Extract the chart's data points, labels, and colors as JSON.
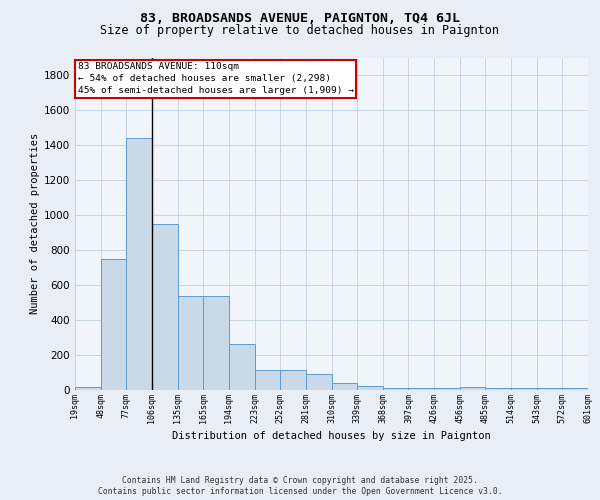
{
  "title": "83, BROADSANDS AVENUE, PAIGNTON, TQ4 6JL",
  "subtitle": "Size of property relative to detached houses in Paignton",
  "xlabel": "Distribution of detached houses by size in Paignton",
  "ylabel": "Number of detached properties",
  "bar_values": [
    20,
    750,
    1440,
    950,
    535,
    535,
    265,
    115,
    115,
    90,
    40,
    25,
    10,
    10,
    10,
    20,
    10,
    10,
    10,
    10
  ],
  "bin_labels": [
    "19sqm",
    "48sqm",
    "77sqm",
    "106sqm",
    "135sqm",
    "165sqm",
    "194sqm",
    "223sqm",
    "252sqm",
    "281sqm",
    "310sqm",
    "339sqm",
    "368sqm",
    "397sqm",
    "426sqm",
    "456sqm",
    "485sqm",
    "514sqm",
    "543sqm",
    "572sqm",
    "601sqm"
  ],
  "bar_color": "#c9d9e8",
  "bar_edge_color": "#5b9bd5",
  "vline_x_idx": 3,
  "vline_color": "#000000",
  "annotation_text": "83 BROADSANDS AVENUE: 110sqm\n← 54% of detached houses are smaller (2,298)\n45% of semi-detached houses are larger (1,909) →",
  "annotation_box_edge": "#cc0000",
  "annotation_box_face": "#ffffff",
  "ylim": [
    0,
    1900
  ],
  "yticks": [
    0,
    200,
    400,
    600,
    800,
    1000,
    1200,
    1400,
    1600,
    1800
  ],
  "footer_line1": "Contains HM Land Registry data © Crown copyright and database right 2025.",
  "footer_line2": "Contains public sector information licensed under the Open Government Licence v3.0.",
  "bg_color": "#e8eef5",
  "plot_bg_color": "#f0f5fb",
  "title_fontsize": 9.5,
  "subtitle_fontsize": 8.5,
  "ylabel_fontsize": 7.5,
  "xlabel_fontsize": 7.5,
  "ytick_fontsize": 7.5,
  "xtick_fontsize": 6.0,
  "annotation_fontsize": 6.8,
  "footer_fontsize": 5.8
}
